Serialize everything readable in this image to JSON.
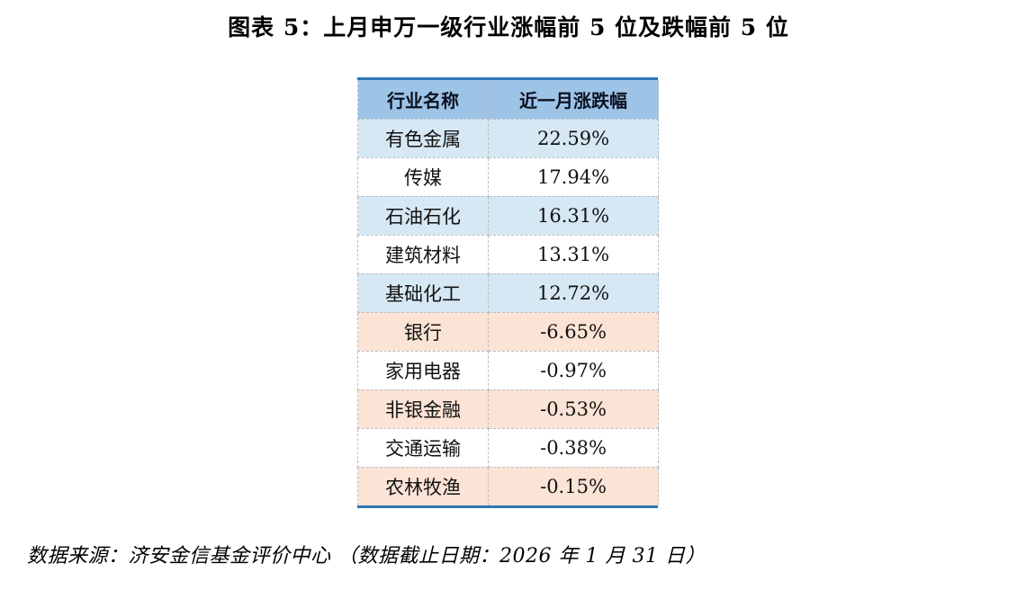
{
  "title": "图表 5：上月申万一级行业涨幅前 5 位及跌幅前 5 位",
  "table": {
    "headers": [
      "行业名称",
      "近一月涨跌幅"
    ],
    "rows": [
      {
        "industry": "有色金属",
        "change": "22.59%",
        "tone": "blue"
      },
      {
        "industry": "传媒",
        "change": "17.94%",
        "tone": "white"
      },
      {
        "industry": "石油石化",
        "change": "16.31%",
        "tone": "blue"
      },
      {
        "industry": "建筑材料",
        "change": "13.31%",
        "tone": "white"
      },
      {
        "industry": "基础化工",
        "change": "12.72%",
        "tone": "blue"
      },
      {
        "industry": "银行",
        "change": "-6.65%",
        "tone": "peach"
      },
      {
        "industry": "家用电器",
        "change": "-0.97%",
        "tone": "white"
      },
      {
        "industry": "非银金融",
        "change": "-0.53%",
        "tone": "peach"
      },
      {
        "industry": "交通运输",
        "change": "-0.38%",
        "tone": "white"
      },
      {
        "industry": "农林牧渔",
        "change": "-0.15%",
        "tone": "peach"
      }
    ]
  },
  "footer": "数据来源：济安金信基金评价中心 （数据截止日期：2026 年 1 月 31 日）",
  "colors": {
    "rule_blue": "#2E75B6",
    "header_bg": "#9DC3E6",
    "gain_row_bg": "#D6E8F3",
    "loss_row_bg": "#FBE3D5",
    "dashed_border": "#B9BFC5",
    "text": "#111111"
  },
  "chart_data": {
    "type": "table",
    "title": "图表 5：上月申万一级行业涨幅前 5 位及跌幅前 5 位",
    "columns": [
      "行业名称",
      "近一月涨跌幅"
    ],
    "rows": [
      [
        "有色金属",
        22.59
      ],
      [
        "传媒",
        17.94
      ],
      [
        "石油石化",
        16.31
      ],
      [
        "建筑材料",
        13.31
      ],
      [
        "基础化工",
        12.72
      ],
      [
        "银行",
        -6.65
      ],
      [
        "家用电器",
        -0.97
      ],
      [
        "非银金融",
        -0.53
      ],
      [
        "交通运输",
        -0.38
      ],
      [
        "农林牧渔",
        -0.15
      ]
    ],
    "unit": "%",
    "source": "数据来源：济安金信基金评价中心 （数据截止日期：2026 年 1 月 31 日）"
  }
}
